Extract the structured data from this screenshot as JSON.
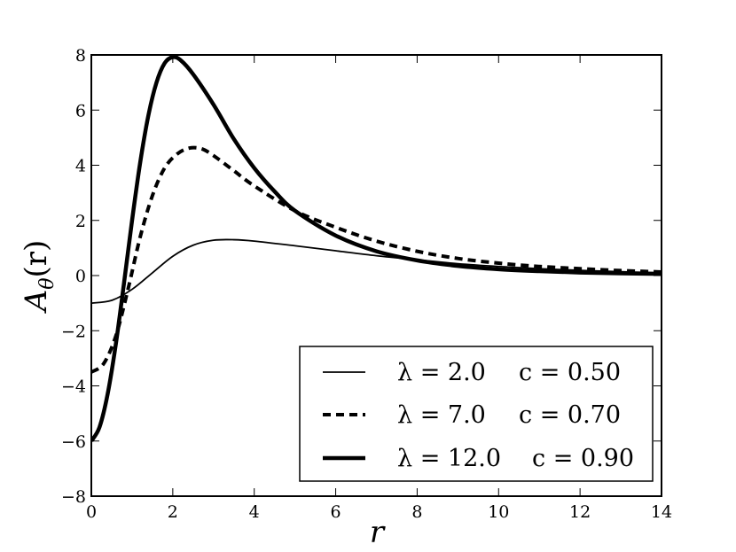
{
  "chart_data": {
    "type": "line",
    "xlabel": "r",
    "ylabel": "A_θ(r)",
    "ylabel_parts": {
      "base": "A",
      "subscript": "θ",
      "arg": "(r)"
    },
    "xlim": [
      0,
      14
    ],
    "ylim": [
      -8,
      8
    ],
    "x_ticks": [
      0,
      2,
      4,
      6,
      8,
      10,
      12,
      14
    ],
    "y_ticks": [
      -8,
      -6,
      -4,
      -2,
      0,
      2,
      4,
      6,
      8
    ],
    "x_tick_labels": [
      "0",
      "2",
      "4",
      "6",
      "8",
      "10",
      "12",
      "14"
    ],
    "y_tick_labels": [
      "−8",
      "−6",
      "−4",
      "−2",
      "0",
      "2",
      "4",
      "6",
      "8"
    ],
    "grid": false,
    "legend_position": "bottom-right",
    "series": [
      {
        "name": "λ = 2.0    c = 0.50",
        "lambda_label": "λ = 2.0",
        "c_label": "c = 0.50",
        "style": "thin-solid",
        "color": "#000000",
        "x": [
          0,
          0.5,
          1,
          1.5,
          2,
          2.5,
          3,
          3.5,
          4,
          5,
          6,
          7,
          8,
          9,
          10,
          11,
          12,
          13,
          14
        ],
        "y": [
          -1.0,
          -0.9,
          -0.5,
          0.1,
          0.7,
          1.1,
          1.28,
          1.3,
          1.25,
          1.08,
          0.9,
          0.72,
          0.57,
          0.43,
          0.33,
          0.25,
          0.19,
          0.14,
          0.1
        ]
      },
      {
        "name": "λ = 7.0    c = 0.70",
        "lambda_label": "λ = 7.0",
        "c_label": "c = 0.70",
        "style": "dashed",
        "color": "#000000",
        "x": [
          0,
          0.3,
          0.6,
          0.9,
          1.2,
          1.5,
          1.8,
          2.1,
          2.4,
          2.7,
          3,
          3.5,
          4,
          5,
          6,
          7,
          8,
          9,
          10,
          11,
          12,
          13,
          14
        ],
        "y": [
          -3.5,
          -3.2,
          -2.2,
          -0.5,
          1.4,
          2.9,
          3.9,
          4.4,
          4.62,
          4.6,
          4.35,
          3.8,
          3.25,
          2.35,
          1.75,
          1.25,
          0.88,
          0.62,
          0.45,
          0.33,
          0.25,
          0.18,
          0.13
        ]
      },
      {
        "name": "λ = 12.0    c = 0.90",
        "lambda_label": "λ = 12.0",
        "c_label": "c = 0.90",
        "style": "thick-solid",
        "color": "#000000",
        "x": [
          0,
          0.2,
          0.4,
          0.6,
          0.8,
          1,
          1.2,
          1.4,
          1.6,
          1.8,
          2,
          2.2,
          2.5,
          3,
          3.5,
          4,
          4.5,
          5,
          6,
          7,
          8,
          9,
          10,
          11,
          12,
          13,
          14
        ],
        "y": [
          -6.0,
          -5.5,
          -4.3,
          -2.5,
          -0.3,
          2.0,
          4.1,
          5.8,
          7.0,
          7.7,
          7.92,
          7.8,
          7.3,
          6.2,
          4.95,
          3.9,
          3.05,
          2.35,
          1.45,
          0.88,
          0.55,
          0.35,
          0.23,
          0.16,
          0.11,
          0.08,
          0.06
        ]
      }
    ]
  }
}
